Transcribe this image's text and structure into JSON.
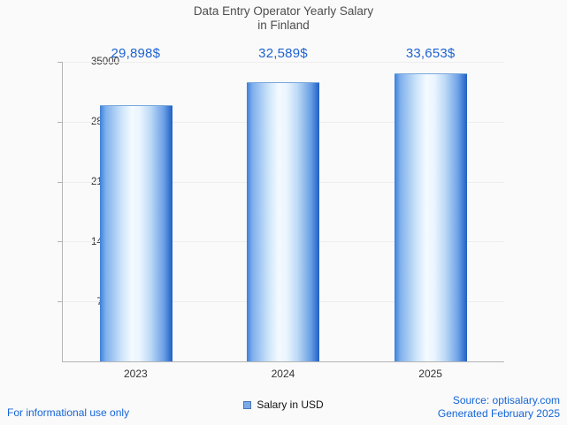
{
  "title": {
    "line1": "Data Entry Operator Yearly Salary",
    "line2": "in Finland"
  },
  "chart_data": {
    "type": "bar",
    "title": "Data Entry Operator Yearly Salary in Finland",
    "categories": [
      "2023",
      "2024",
      "2025"
    ],
    "series": [
      {
        "name": "Salary in USD",
        "values": [
          29898,
          32589,
          33653
        ]
      }
    ],
    "values": [
      29898,
      32589,
      33653
    ],
    "value_labels": [
      "29,898$",
      "32,589$",
      "33,653$"
    ],
    "xlabel": "",
    "ylabel": "",
    "ylim": [
      0,
      35000
    ],
    "yticks": [
      7000,
      14000,
      21000,
      28000,
      35000
    ],
    "ytick_labels_top_to_bottom": [
      "35000",
      "28000",
      "21000",
      "14000",
      "7000"
    ],
    "grid": "horizontal-faint",
    "legend_position": "bottom-center"
  },
  "legend": {
    "label": "Salary in USD",
    "marker_color": "#7aa9e6",
    "marker_border": "#4a77b5"
  },
  "footer": {
    "disclaimer": "For informational use only",
    "source": "Source: optisalary.com",
    "generated": "Generated February 2025"
  },
  "colors": {
    "accent_blue": "#1e63d0",
    "bar_edge_dark": "#1f5fc4",
    "bar_edge_light": "#3d7fd8",
    "bar_center": "#f4faff",
    "title_gray": "#4d4d4d",
    "axis_gray": "#b3b3b3",
    "text_dark": "#333333",
    "background": "#fafafa"
  }
}
